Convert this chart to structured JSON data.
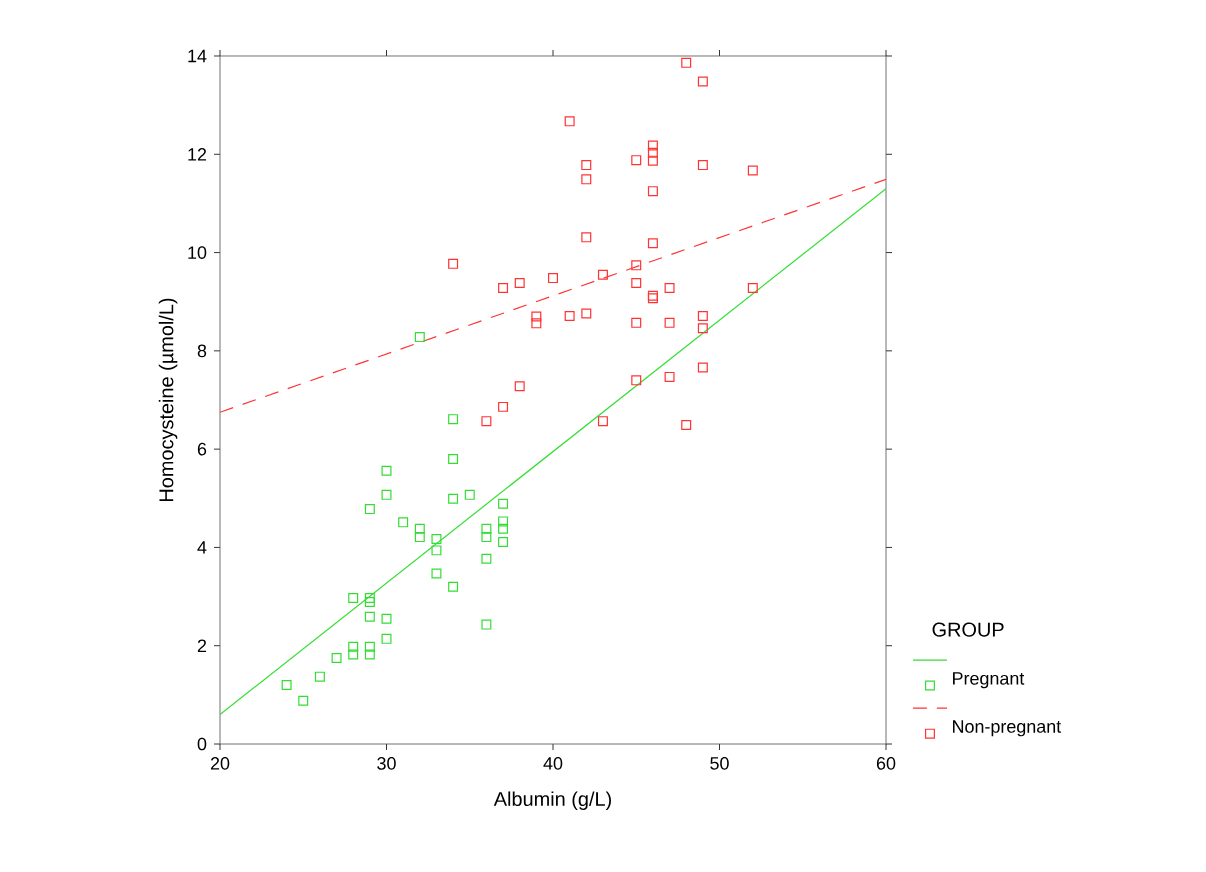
{
  "chart_data": {
    "type": "scatter",
    "xlabel": "Albumin (g/L)",
    "ylabel": "Homocysteine  (µmol/L)",
    "legend_title": "GROUP",
    "legend": "bottom right",
    "grid": false,
    "xlim": [
      20,
      60
    ],
    "xticks": [
      20,
      30,
      40,
      50,
      60
    ],
    "ylim": [
      0,
      14
    ],
    "yticks": [
      0,
      2,
      4,
      6,
      8,
      10,
      12,
      14
    ],
    "series": [
      {
        "name": "Pregnant",
        "marker": "square",
        "color": "#33dd33",
        "x": [
          24,
          25,
          26,
          27,
          28,
          28,
          28,
          29,
          29,
          29,
          29,
          29,
          29,
          30,
          30,
          30,
          30,
          31,
          32,
          32,
          32,
          33,
          33,
          33,
          34,
          34,
          34,
          34,
          35,
          36,
          36,
          36,
          36,
          37,
          37,
          37,
          37
        ],
        "values": [
          1.2,
          0.88,
          1.37,
          1.75,
          2.97,
          1.98,
          1.82,
          2.97,
          2.89,
          2.59,
          1.98,
          1.82,
          4.78,
          5.56,
          5.07,
          2.55,
          2.14,
          4.51,
          4.38,
          4.21,
          8.28,
          4.17,
          3.94,
          3.47,
          6.61,
          5.8,
          4.99,
          3.2,
          5.07,
          4.38,
          4.21,
          3.77,
          2.43,
          4.89,
          4.53,
          4.38,
          4.11
        ]
      },
      {
        "type": "line",
        "marker": "none",
        "line_style": "solid",
        "color": "#33dd33",
        "x": [
          20,
          60
        ],
        "values": [
          0.6,
          11.3
        ]
      },
      {
        "name": "Non-pregnant",
        "marker": "square",
        "color": "#ff3333",
        "x": [
          48,
          49,
          41,
          46,
          46,
          46,
          45,
          42,
          42,
          49,
          52,
          46,
          42,
          46,
          34,
          45,
          43,
          40,
          38,
          37,
          45,
          47,
          52,
          46,
          46,
          39,
          39,
          41,
          42,
          45,
          47,
          49,
          49,
          38,
          37,
          36,
          43,
          45,
          47,
          49,
          48
        ],
        "values": [
          13.86,
          13.48,
          12.67,
          12.18,
          12.03,
          11.87,
          11.88,
          11.78,
          11.49,
          11.78,
          11.67,
          11.25,
          10.31,
          10.19,
          9.77,
          9.74,
          9.55,
          9.48,
          9.38,
          9.28,
          9.38,
          9.28,
          9.28,
          9.12,
          9.07,
          8.7,
          8.56,
          8.71,
          8.76,
          8.57,
          8.57,
          8.71,
          8.46,
          7.28,
          6.86,
          6.57,
          6.57,
          7.4,
          7.47,
          7.66,
          6.49
        ]
      },
      {
        "type": "line",
        "marker": "none",
        "line_style": "dashed",
        "color": "#ff3333",
        "x": [
          20,
          60
        ],
        "values": [
          6.75,
          11.49
        ]
      }
    ]
  }
}
